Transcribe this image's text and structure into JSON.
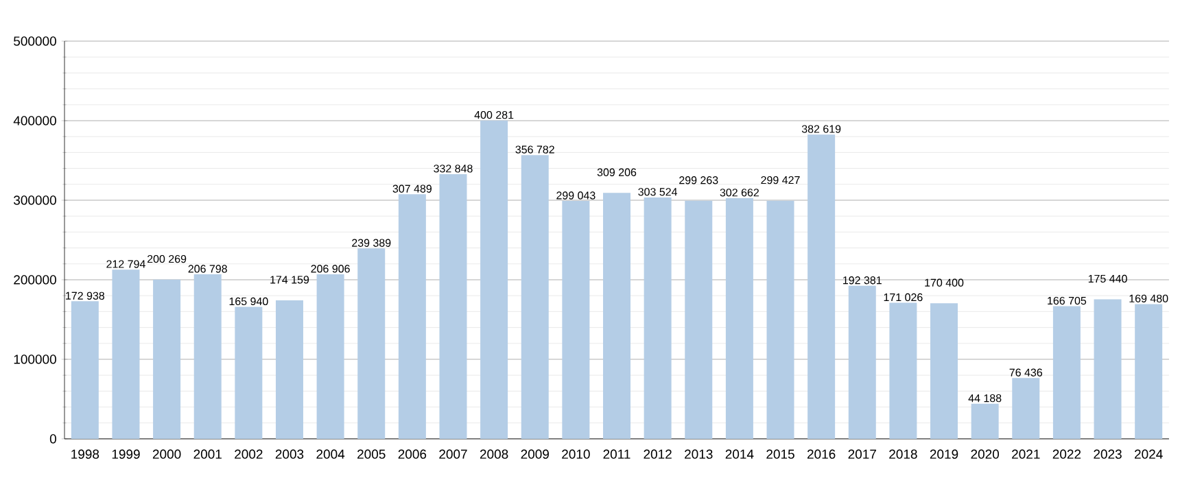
{
  "chart_data": {
    "type": "bar",
    "categories": [
      "1998",
      "1999",
      "2000",
      "2001",
      "2002",
      "2003",
      "2004",
      "2005",
      "2006",
      "2007",
      "2008",
      "2009",
      "2010",
      "2011",
      "2012",
      "2013",
      "2014",
      "2015",
      "2016",
      "2017",
      "2018",
      "2019",
      "2020",
      "2021",
      "2022",
      "2023",
      "2024"
    ],
    "values": [
      172938,
      212794,
      200269,
      206798,
      165940,
      174159,
      206906,
      239389,
      307489,
      332848,
      400281,
      356782,
      299043,
      309206,
      303524,
      299263,
      302662,
      299427,
      382619,
      192381,
      171026,
      170400,
      44188,
      76436,
      166705,
      175440,
      169480
    ],
    "value_labels": [
      "172 938",
      "212 794",
      "200 269",
      "206 798",
      "165 940",
      "174 159",
      "206 906",
      "239 389",
      "307 489",
      "332 848",
      "400 281",
      "356 782",
      "299 043",
      "309 206",
      "303 524",
      "299 263",
      "302 662",
      "299 427",
      "382 619",
      "192 381",
      "171 026",
      "170 400",
      "44 188",
      "76 436",
      "166 705",
      "175 440",
      "169 480"
    ],
    "color": "#b4cde6",
    "ylim": [
      0,
      500000
    ],
    "yticks": [
      0,
      100000,
      200000,
      300000,
      400000,
      500000
    ],
    "grid": "y"
  }
}
